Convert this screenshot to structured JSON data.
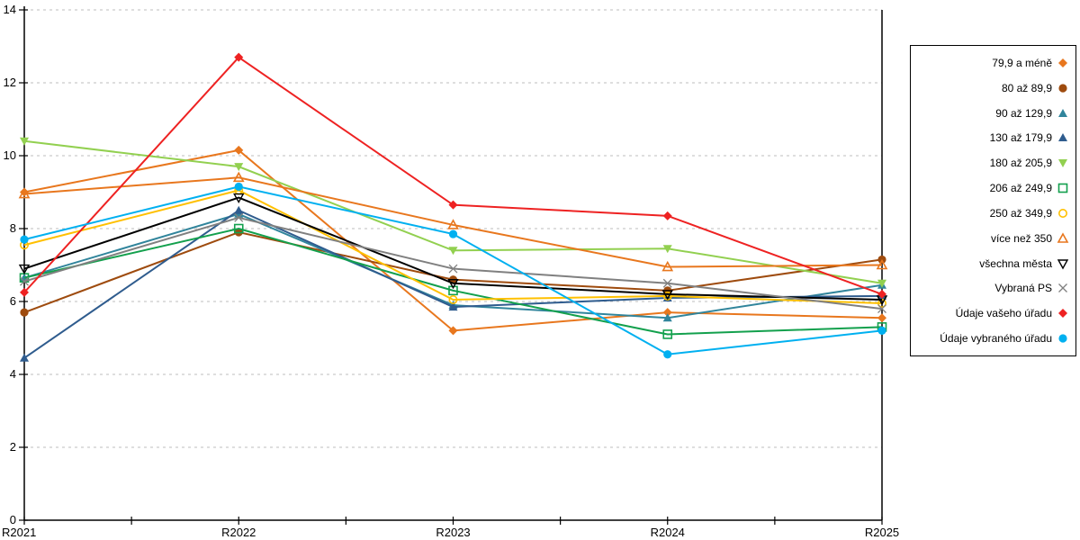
{
  "chart_data": {
    "type": "line",
    "title": "",
    "xlabel": "",
    "ylabel": "",
    "categories": [
      "R2021",
      "R2022",
      "R2023",
      "R2024",
      "R2025"
    ],
    "ylim": [
      0,
      14
    ],
    "ytick_step": 2,
    "y_tick_labels": [
      "0",
      "2",
      "4",
      "6",
      "8",
      "10",
      "12",
      "14"
    ],
    "grid": "horizontal-dashed",
    "legend_position": "right-box",
    "series": [
      {
        "name": "79,9 a méně",
        "color": "#E8771E",
        "marker": "diamond-filled",
        "values": [
          9.0,
          10.15,
          5.2,
          5.7,
          5.55
        ]
      },
      {
        "name": "80 až 89,9",
        "color": "#9E4B0E",
        "marker": "circle-filled",
        "values": [
          5.7,
          7.9,
          6.6,
          6.3,
          7.15
        ]
      },
      {
        "name": "90 až 129,9",
        "color": "#31859C",
        "marker": "triangle-up-filled",
        "values": [
          6.65,
          8.4,
          5.9,
          5.55,
          6.45
        ]
      },
      {
        "name": "130 až 179,9",
        "color": "#2F5C8E",
        "marker": "triangle-up-filled",
        "values": [
          4.45,
          8.5,
          5.85,
          6.1,
          6.15
        ]
      },
      {
        "name": "180 až 205,9",
        "color": "#92D050",
        "marker": "triangle-down-filled",
        "values": [
          10.4,
          9.7,
          7.4,
          7.45,
          6.5
        ]
      },
      {
        "name": "206 až 249,9",
        "color": "#13A04D",
        "marker": "square-open",
        "values": [
          6.65,
          8.0,
          6.3,
          5.1,
          5.3
        ]
      },
      {
        "name": "250 až 349,9",
        "color": "#FFC000",
        "marker": "circle-open",
        "values": [
          7.55,
          9.05,
          6.05,
          6.15,
          5.95
        ]
      },
      {
        "name": "více než 350",
        "color": "#E8771E",
        "marker": "triangle-up-open",
        "values": [
          8.95,
          9.4,
          8.1,
          6.95,
          7.0
        ]
      },
      {
        "name": "všechna města",
        "color": "#000000",
        "marker": "triangle-down-open",
        "values": [
          6.9,
          8.85,
          6.5,
          6.2,
          6.05
        ]
      },
      {
        "name": "Vybraná PS",
        "color": "#808080",
        "marker": "x",
        "values": [
          6.55,
          8.3,
          6.9,
          6.5,
          5.8
        ]
      },
      {
        "name": "Údaje vašeho úřadu",
        "color": "#EE2222",
        "marker": "diamond-filled",
        "values": [
          6.25,
          12.7,
          8.65,
          8.35,
          6.2
        ]
      },
      {
        "name": "Údaje vybraného úřadu",
        "color": "#00B0F0",
        "marker": "circle-filled",
        "values": [
          7.7,
          9.15,
          7.85,
          4.55,
          5.2
        ]
      }
    ],
    "style_colors": {
      "axis": "#000000",
      "gridline": "#BDBDBD",
      "background": "#FFFFFF"
    }
  }
}
